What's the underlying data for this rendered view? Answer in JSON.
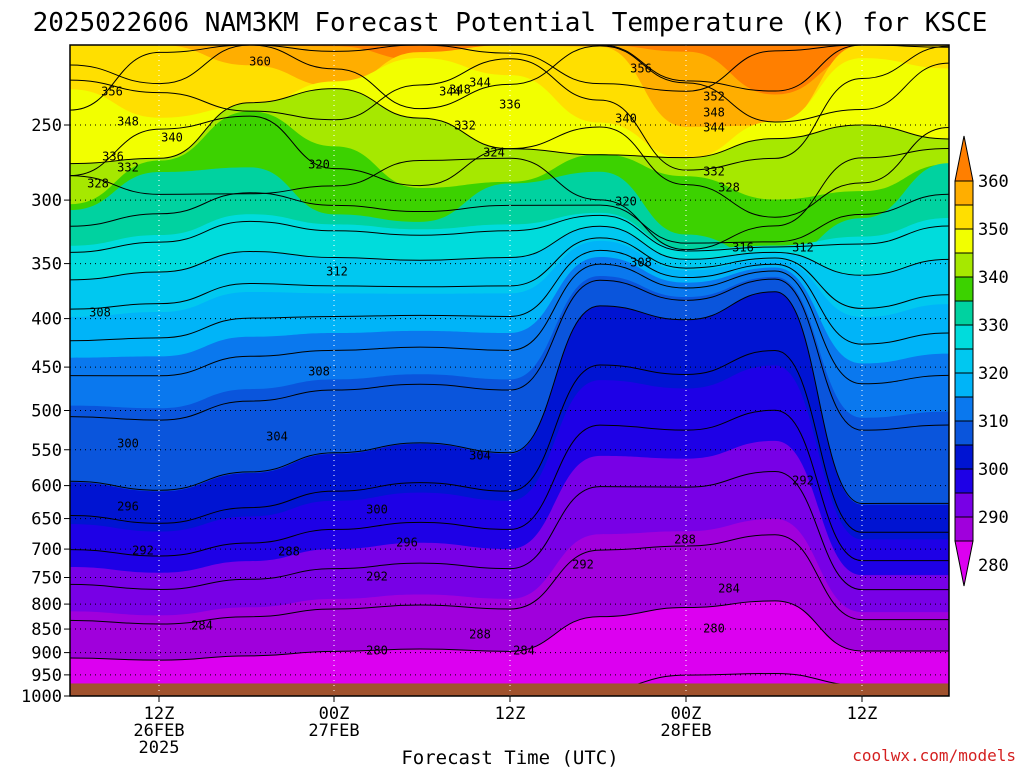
{
  "title": "2025022606 NAM3KM Forecast Potential Temperature (K) for KSCE",
  "chart_data": {
    "type": "contour",
    "title": "2025022606 NAM3KM Forecast Potential Temperature (K) for KSCE",
    "xlabel": "Forecast Time (UTC)",
    "ylabel": "",
    "variable": "Potential Temperature (K)",
    "y_axis": {
      "scale": "log",
      "reversed": true,
      "tick_labels": [
        "250",
        "300",
        "350",
        "400",
        "450",
        "500",
        "550",
        "600",
        "650",
        "700",
        "750",
        "800",
        "850",
        "900",
        "950",
        "1000"
      ],
      "ticks": [
        250,
        300,
        350,
        400,
        450,
        500,
        550,
        600,
        650,
        700,
        750,
        800,
        850,
        900,
        950,
        1000
      ]
    },
    "x_axis": {
      "tick_labels": [
        {
          "l1": "12Z",
          "l2": "26FEB",
          "l3": "2025"
        },
        {
          "l1": "00Z",
          "l2": "27FEB",
          "l3": ""
        },
        {
          "l1": "12Z",
          "l2": "",
          "l3": ""
        },
        {
          "l1": "00Z",
          "l2": "28FEB",
          "l3": ""
        },
        {
          "l1": "12Z",
          "l2": "",
          "l3": ""
        }
      ]
    },
    "grid": true,
    "legend": {
      "placement": "right",
      "labels": [
        "360",
        "350",
        "340",
        "330",
        "320",
        "310",
        "300",
        "290",
        "280"
      ],
      "bins": [
        {
          "range": [
            355,
            365
          ],
          "color": "#ff7f00"
        },
        {
          "range": [
            350,
            355
          ],
          "color": "#ffae00"
        },
        {
          "range": [
            345,
            350
          ],
          "color": "#ffdf00"
        },
        {
          "range": [
            340,
            345
          ],
          "color": "#f2ff00"
        },
        {
          "range": [
            335,
            340
          ],
          "color": "#a6e800"
        },
        {
          "range": [
            330,
            335
          ],
          "color": "#3cd200"
        },
        {
          "range": [
            325,
            330
          ],
          "color": "#00d2a0"
        },
        {
          "range": [
            320,
            325
          ],
          "color": "#00dcdc"
        },
        {
          "range": [
            315,
            320
          ],
          "color": "#00c8f0"
        },
        {
          "range": [
            310,
            315
          ],
          "color": "#00b4f8"
        },
        {
          "range": [
            305,
            310
          ],
          "color": "#0a78ee"
        },
        {
          "range": [
            300,
            305
          ],
          "color": "#0a55dc"
        },
        {
          "range": [
            295,
            300
          ],
          "color": "#0014d2"
        },
        {
          "range": [
            290,
            295
          ],
          "color": "#1e00e6"
        },
        {
          "range": [
            285,
            290
          ],
          "color": "#7800e6"
        },
        {
          "range": [
            280,
            285
          ],
          "color": "#a000dc"
        },
        {
          "range": [
            275,
            280
          ],
          "color": "#dc00f0"
        }
      ]
    },
    "contour_labels": [
      "360",
      "356",
      "356",
      "352",
      "348",
      "348",
      "348",
      "344",
      "344",
      "344",
      "340",
      "340",
      "336",
      "336",
      "332",
      "332",
      "332",
      "328",
      "328",
      "324",
      "320",
      "320",
      "316",
      "312",
      "312",
      "308",
      "308",
      "308",
      "304",
      "304",
      "300",
      "300",
      "296",
      "296",
      "292",
      "292",
      "292",
      "292",
      "288",
      "288",
      "288",
      "284",
      "284",
      "284",
      "280",
      "280"
    ],
    "ground": {
      "below_hpa": 970,
      "color": "#a0522d"
    }
  },
  "credit": "coolwx.com/models"
}
